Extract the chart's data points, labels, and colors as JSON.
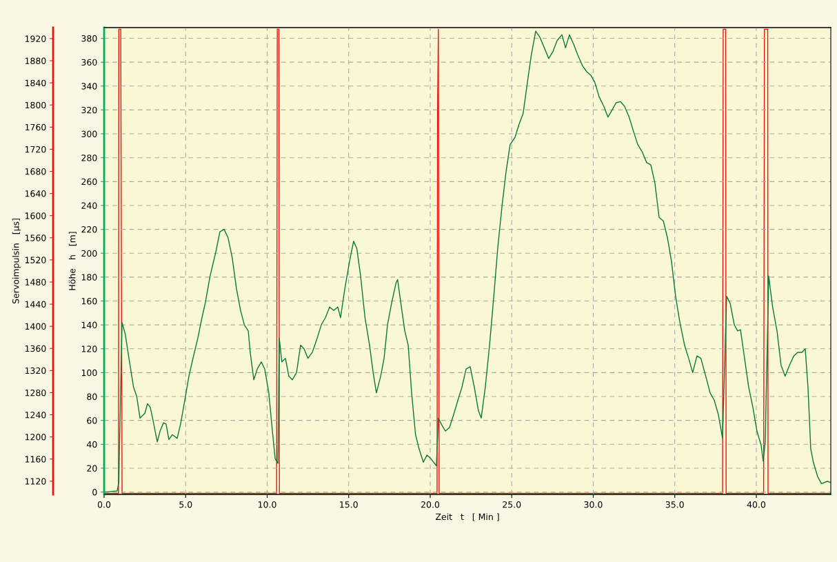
{
  "chart_data": {
    "type": "line",
    "xlabel": "Zeit   t   [ Min ]",
    "ylabel": "Höhe   h   [m]",
    "y2label": "Servoimpulsin   [µs]",
    "xlim": [
      0,
      44.57
    ],
    "xticks": [
      {
        "value": 0,
        "label": "0.0"
      },
      {
        "value": 5,
        "label": "5.0"
      },
      {
        "value": 10,
        "label": "10.0"
      },
      {
        "value": 15,
        "label": "15.0"
      },
      {
        "value": 20,
        "label": "20.0"
      },
      {
        "value": 25,
        "label": "25.0"
      },
      {
        "value": 30,
        "label": "30.0"
      },
      {
        "value": 35,
        "label": "35.0"
      },
      {
        "value": 40,
        "label": "40.0"
      }
    ],
    "ylim": [
      -2,
      389
    ],
    "yticks": [
      0,
      20,
      40,
      60,
      80,
      100,
      120,
      140,
      160,
      180,
      200,
      220,
      240,
      260,
      280,
      300,
      320,
      340,
      360,
      380
    ],
    "y2lim": [
      1096,
      1940
    ],
    "y2ticks": [
      1120,
      1160,
      1200,
      1240,
      1280,
      1320,
      1360,
      1400,
      1440,
      1480,
      1520,
      1560,
      1600,
      1640,
      1680,
      1720,
      1760,
      1800,
      1840,
      1880,
      1920
    ],
    "grid": true,
    "marker": "none",
    "line_style": "solid",
    "series": [
      {
        "color": "#0a7a3a",
        "x": [
          0,
          0.8,
          0.9,
          1.1,
          1.3,
          1.5,
          1.8,
          2.0,
          2.2,
          2.5,
          2.66,
          2.83,
          3.0,
          3.26,
          3.43,
          3.64,
          3.8,
          3.97,
          4.19,
          4.48,
          4.69,
          4.95,
          5.2,
          5.45,
          5.75,
          6.0,
          6.2,
          6.5,
          6.85,
          7.1,
          7.36,
          7.6,
          7.86,
          8.12,
          8.37,
          8.6,
          8.84,
          8.96,
          9.18,
          9.39,
          9.64,
          9.85,
          10.1,
          10.3,
          10.49,
          10.66,
          10.74,
          10.9,
          11.12,
          11.33,
          11.54,
          11.8,
          12.05,
          12.26,
          12.5,
          12.77,
          13.07,
          13.32,
          13.57,
          13.83,
          14.08,
          14.33,
          14.5,
          14.76,
          15.05,
          15.3,
          15.5,
          15.73,
          16.0,
          16.28,
          16.5,
          16.7,
          16.96,
          17.17,
          17.38,
          17.63,
          17.9,
          18.0,
          18.2,
          18.44,
          18.65,
          18.86,
          19.1,
          19.32,
          19.58,
          19.8,
          20.04,
          20.38,
          20.5,
          20.68,
          20.93,
          21.18,
          21.44,
          21.7,
          21.95,
          22.2,
          22.45,
          22.7,
          22.96,
          23.13,
          23.38,
          23.64,
          23.9,
          24.14,
          24.4,
          24.65,
          24.9,
          25.2,
          25.45,
          25.7,
          25.96,
          26.2,
          26.47,
          26.72,
          27.0,
          27.27,
          27.53,
          27.78,
          28.08,
          28.3,
          28.54,
          28.8,
          29.05,
          29.34,
          29.6,
          29.85,
          30.1,
          30.36,
          30.65,
          30.9,
          31.16,
          31.4,
          31.67,
          31.92,
          32.2,
          32.47,
          32.73,
          33.0,
          33.27,
          33.53,
          33.78,
          34.04,
          34.3,
          34.55,
          34.8,
          35.05,
          35.3,
          35.6,
          35.85,
          36.1,
          36.36,
          36.6,
          36.9,
          37.17,
          37.42,
          37.67,
          37.93,
          38.18,
          38.4,
          38.65,
          38.86,
          39.03,
          39.28,
          39.53,
          39.79,
          40.04,
          40.3,
          40.42,
          40.55,
          40.76,
          41.0,
          41.27,
          41.52,
          41.77,
          42.03,
          42.3,
          42.54,
          42.8,
          43.0,
          43.17,
          43.34,
          43.5,
          43.76,
          44.0,
          44.36,
          44.57
        ],
        "values": [
          0,
          1,
          8,
          142,
          132,
          114,
          88,
          80,
          62,
          66,
          74,
          71,
          60,
          42,
          51,
          58,
          57,
          44,
          48,
          45,
          57,
          77,
          97,
          112,
          129,
          146,
          158,
          181,
          201,
          218,
          220,
          213,
          196,
          170,
          152,
          140,
          135,
          117,
          94,
          103,
          109,
          103,
          83,
          54,
          28,
          24,
          129,
          109,
          112,
          97,
          94,
          100,
          123,
          120,
          112,
          117,
          129,
          140,
          146,
          155,
          152,
          155,
          146,
          170,
          193,
          210,
          204,
          181,
          146,
          123,
          100,
          83,
          97,
          112,
          140,
          158,
          175,
          178,
          158,
          135,
          123,
          83,
          48,
          36,
          25,
          31,
          28,
          22,
          62,
          57,
          51,
          54,
          65,
          77,
          88,
          103,
          105,
          88,
          68,
          62,
          88,
          123,
          164,
          204,
          239,
          268,
          291,
          297,
          308,
          317,
          343,
          366,
          386,
          381,
          372,
          363,
          369,
          378,
          383,
          372,
          383,
          375,
          366,
          357,
          352,
          349,
          343,
          331,
          323,
          314,
          320,
          326,
          327,
          323,
          314,
          302,
          291,
          285,
          276,
          274,
          259,
          230,
          227,
          213,
          193,
          164,
          143,
          123,
          112,
          100,
          114,
          112,
          97,
          83,
          77,
          65,
          45,
          164,
          158,
          140,
          135,
          136,
          112,
          88,
          71,
          51,
          39,
          26,
          42,
          181,
          155,
          135,
          106,
          97,
          106,
          114,
          117,
          117,
          120,
          88,
          36,
          25,
          13,
          7,
          9,
          8
        ]
      },
      {
        "color": "#e8140f",
        "axis": "y2",
        "x": [
          0,
          0.88,
          0.9,
          1.02,
          1.1,
          10.58,
          10.62,
          10.72,
          10.75,
          20.42,
          20.45,
          20.5,
          20.55,
          37.93,
          37.97,
          38.12,
          38.15,
          40.45,
          40.5,
          40.7,
          40.72,
          44.57
        ],
        "values": [
          1098,
          1098,
          1937,
          1937,
          1098,
          1098,
          1937,
          1937,
          1098,
          1098,
          1784,
          1937,
          1098,
          1098,
          1937,
          1937,
          1098,
          1098,
          1937,
          1937,
          1098,
          1098
        ]
      }
    ]
  }
}
